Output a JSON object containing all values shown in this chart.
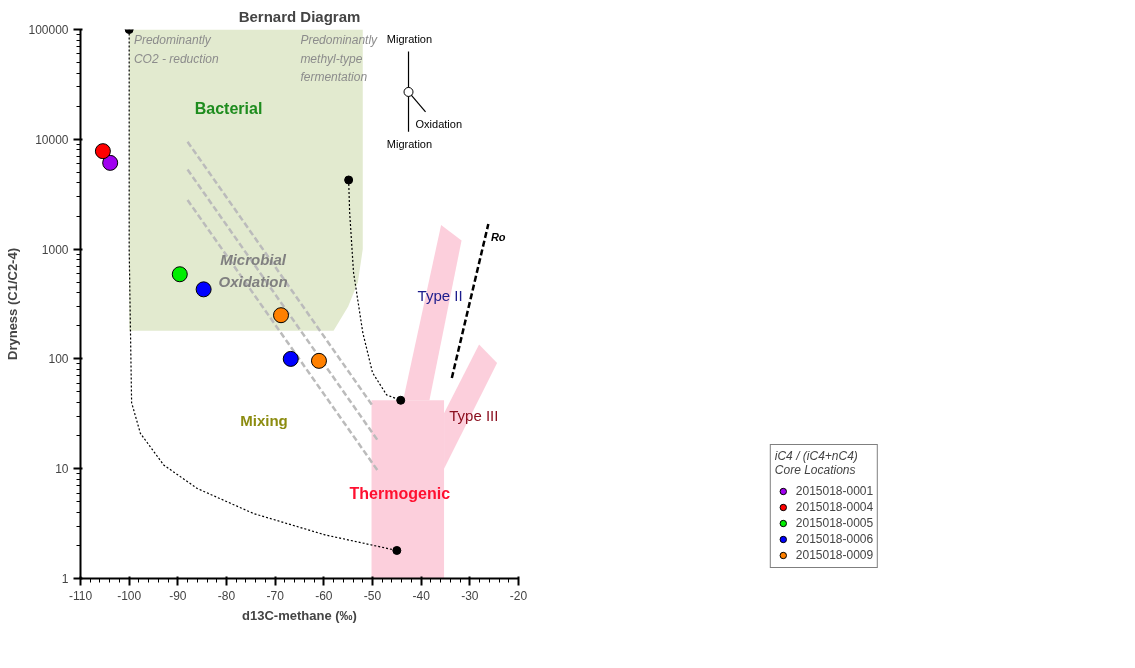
{
  "chart_data": {
    "type": "scatter",
    "title": "Bernard Diagram",
    "xlabel": "d13C-methane (‰)",
    "ylabel": "Dryness (C1/C2-4)",
    "legend_title": "iC4 / (iC4+nC4)\nCore Locations",
    "legend": "bottom right",
    "log": "y",
    "grid": false,
    "marker": "circle",
    "xlim": [
      -110,
      -20
    ],
    "xticks": [
      -110,
      -100,
      -90,
      -80,
      -70,
      -60,
      -50,
      -40,
      -30,
      -20
    ],
    "ylim": [
      1,
      100000
    ],
    "yticks": [
      1,
      10,
      100,
      1000,
      10000,
      100000
    ],
    "series": [
      {
        "type": "area",
        "marker": "none",
        "color": "#e2eacf",
        "x": [
          -100,
          -52,
          -52,
          -53,
          -55,
          -58,
          -100
        ],
        "values": [
          100000,
          100000,
          1000,
          500,
          300,
          180,
          180
        ]
      },
      {
        "type": "area",
        "marker": "none",
        "color": "#fccfdc",
        "x": [
          -50.2,
          -35.3,
          -35.3,
          -50.2
        ],
        "values": [
          1,
          1,
          42,
          42
        ]
      },
      {
        "type": "area",
        "marker": "none",
        "color": "#fccfdc",
        "x": [
          -43.7,
          -38.3,
          -31.7,
          -35.9
        ],
        "values": [
          42,
          42,
          1200,
          1660
        ]
      },
      {
        "type": "area",
        "marker": "none",
        "color": "#fccfdc",
        "x": [
          -35.3,
          -24.4,
          -28.1,
          -35.3
        ],
        "values": [
          10,
          92,
          135,
          32
        ]
      },
      {
        "type": "line",
        "marker": "none",
        "color": "#000000",
        "line_style": "dotted",
        "x": [
          -100,
          -100,
          -99.5,
          -97.7,
          -92.9,
          -86,
          -74.4,
          -59.8,
          -45
        ],
        "values": [
          100000,
          1000,
          40,
          21,
          10.8,
          6.6,
          3.9,
          2.5,
          1.8
        ]
      },
      {
        "type": "line",
        "marker": "none",
        "color": "#000000",
        "line_style": "dotted",
        "x": [
          -54.9,
          -54.7,
          -53.9,
          -52,
          -50,
          -47.1,
          -44.2
        ],
        "values": [
          4260,
          2180,
          615,
          174,
          75,
          47,
          42
        ]
      },
      {
        "type": "scatter",
        "color": "#000000",
        "marker": "circle",
        "x": [
          -100,
          -45,
          -54.9,
          -44.2
        ],
        "values": [
          100000,
          1.8,
          4260,
          42
        ]
      },
      {
        "type": "line",
        "marker": "none",
        "color": "#bbbbbb",
        "line_style": "dashed",
        "x": [
          -88,
          -50
        ],
        "values": [
          9500,
          37.5
        ]
      },
      {
        "type": "line",
        "marker": "none",
        "color": "#bbbbbb",
        "line_style": "dashed",
        "x": [
          -88,
          -49
        ],
        "values": [
          5300,
          18.3
        ]
      },
      {
        "type": "line",
        "marker": "none",
        "color": "#bbbbbb",
        "line_style": "dashed",
        "x": [
          -88,
          -49
        ],
        "values": [
          2800,
          9.7
        ]
      },
      {
        "type": "line",
        "marker": "none",
        "color": "#000000",
        "line_style": "dashed",
        "x": [
          -33.7,
          -26.2
        ],
        "values": [
          67,
          1690
        ]
      },
      {
        "type": "line",
        "marker": "none",
        "color": "#000000",
        "line_style": "solid",
        "x": [
          -42.6,
          -42.6
        ],
        "values": [
          63000,
          11700
        ]
      },
      {
        "type": "line",
        "marker": "none",
        "color": "#000000",
        "line_style": "solid",
        "x": [
          -42.6,
          -39.1
        ],
        "values": [
          27000,
          17800
        ]
      },
      {
        "type": "scatter",
        "color": "#ffffff",
        "marker": "circle",
        "x": [
          -42.6
        ],
        "values": [
          27000
        ]
      },
      {
        "name": "2015018-0001",
        "color": "#a000f0",
        "x": [
          -103.9
        ],
        "values": [
          6100
        ]
      },
      {
        "name": "2015018-0004",
        "color": "#ff0000",
        "x": [
          -105.4
        ],
        "values": [
          7800
        ]
      },
      {
        "name": "2015018-0005",
        "color": "#00ee00",
        "x": [
          -89.6
        ],
        "values": [
          590
        ]
      },
      {
        "name": "2015018-0006",
        "color": "#0000ff",
        "x": [
          -84.7,
          -66.8
        ],
        "values": [
          430,
          100
        ]
      },
      {
        "name": "2015018-0009",
        "color": "#ff8000",
        "x": [
          -68.8,
          -61.0
        ],
        "values": [
          250,
          96
        ]
      }
    ],
    "annotations": [
      "Predominantly\nCO2 - reduction",
      "Predominantly\nmethyl-type\nfermentation",
      "Bacterial",
      "Microbial\nOxidation",
      "Mixing",
      "Thermogenic",
      "Type II",
      "Type III",
      "Ro",
      "Migration",
      "Migration",
      "Oxidation"
    ]
  }
}
